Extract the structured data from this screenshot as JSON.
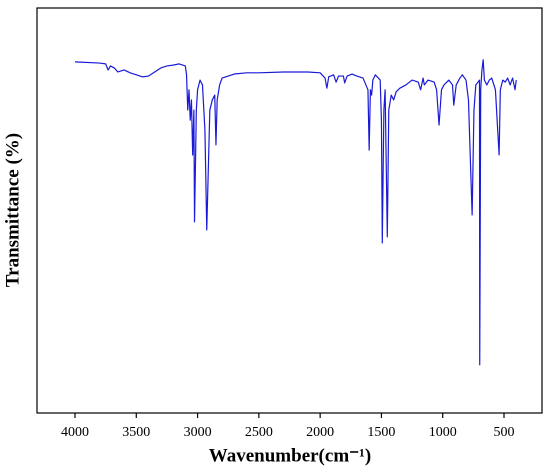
{
  "chart_data": {
    "type": "line",
    "xlabel": "Wavenumber(cm⁻¹)",
    "ylabel": "Transmittance (%)",
    "xlim": [
      4310,
      190
    ],
    "ylim": [
      0,
      100
    ],
    "xticks": [
      4000,
      3500,
      3000,
      2500,
      2000,
      1500,
      1000,
      500
    ],
    "grid": false,
    "x": [
      4000,
      3800,
      3750,
      3730,
      3710,
      3680,
      3650,
      3600,
      3550,
      3500,
      3450,
      3400,
      3350,
      3300,
      3250,
      3200,
      3150,
      3100,
      3090,
      3080,
      3070,
      3060,
      3050,
      3040,
      3030,
      3025,
      3010,
      3000,
      2980,
      2960,
      2940,
      2925,
      2900,
      2880,
      2860,
      2850,
      2840,
      2820,
      2800,
      2700,
      2600,
      2500,
      2300,
      2280,
      2100,
      2000,
      1960,
      1945,
      1930,
      1890,
      1870,
      1850,
      1810,
      1800,
      1780,
      1740,
      1700,
      1650,
      1610,
      1600,
      1590,
      1580,
      1570,
      1550,
      1510,
      1500,
      1493,
      1480,
      1470,
      1452,
      1440,
      1420,
      1400,
      1380,
      1350,
      1300,
      1250,
      1200,
      1180,
      1160,
      1150,
      1120,
      1070,
      1050,
      1030,
      1010,
      990,
      950,
      920,
      910,
      890,
      860,
      840,
      810,
      790,
      760,
      745,
      730,
      700,
      698,
      690,
      680,
      670,
      660,
      640,
      620,
      600,
      570,
      540,
      530,
      510,
      490,
      470,
      450,
      430,
      410,
      400
    ],
    "series": [
      {
        "color": "#1a1ad8",
        "values": [
          86.7,
          86.4,
          86.2,
          84.7,
          85.7,
          85.2,
          84.2,
          84.7,
          84.0,
          83.5,
          83.0,
          83.2,
          84.2,
          85.2,
          85.7,
          85.9,
          86.2,
          85.7,
          83.5,
          74.8,
          79.8,
          72.3,
          77.3,
          63.7,
          74.8,
          47.2,
          74.8,
          79.8,
          82.2,
          81.0,
          69.9,
          45.2,
          74.8,
          77.3,
          78.5,
          66.2,
          77.3,
          81.0,
          82.7,
          83.7,
          84.0,
          84.0,
          84.2,
          84.2,
          84.2,
          84.0,
          82.7,
          80.2,
          83.0,
          83.5,
          81.7,
          83.2,
          83.2,
          81.5,
          83.2,
          83.7,
          83.2,
          82.7,
          79.8,
          64.9,
          79.8,
          78.5,
          82.2,
          83.5,
          82.2,
          72.3,
          42.0,
          74.8,
          79.8,
          43.5,
          74.8,
          78.5,
          77.3,
          79.3,
          80.2,
          81.0,
          82.2,
          81.7,
          79.8,
          82.7,
          81.0,
          82.2,
          81.7,
          79.8,
          71.1,
          79.8,
          81.0,
          82.2,
          81.0,
          76.0,
          81.0,
          82.7,
          83.5,
          82.2,
          77.3,
          48.9,
          74.8,
          81.0,
          82.2,
          11.9,
          79.8,
          84.7,
          87.2,
          82.2,
          81.0,
          82.2,
          82.7,
          79.8,
          63.7,
          79.8,
          82.2,
          81.7,
          82.7,
          81.0,
          82.7,
          79.8,
          82.2
        ]
      }
    ]
  }
}
